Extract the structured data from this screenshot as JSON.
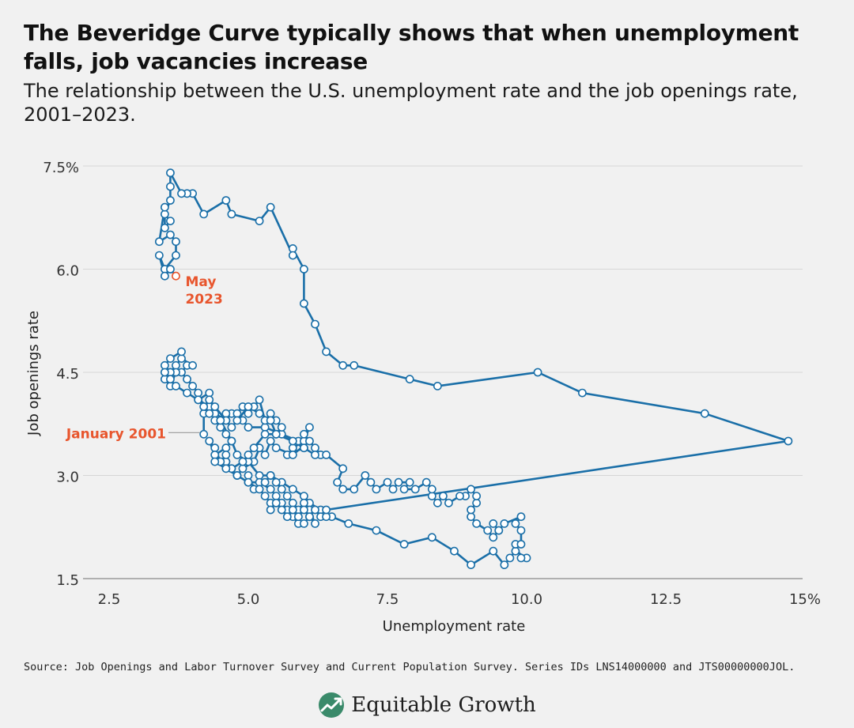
{
  "title": "The Beveridge Curve typically shows that when unemployment falls, job vacancies increase",
  "subtitle": "The relationship between the U.S. unemployment rate and the job openings rate, 2001–2023.",
  "source": "Source: Job Openings and Labor Turnover Survey and Current Population Survey. Series IDs LNS14000000 and JTS00000000JOL.",
  "brand": "Equitable Growth",
  "colors": {
    "line": "#1a6fa8",
    "highlight": "#e8552d",
    "marker_fill": "#ffffff",
    "grid": "#d6d6d6",
    "background": "#f1f1f1"
  },
  "chart_data": {
    "type": "scatter",
    "xlabel": "Unemployment rate",
    "ylabel": "Job openings rate",
    "xlim": [
      2.0,
      15.0
    ],
    "ylim": [
      1.5,
      7.5
    ],
    "x_ticks": [
      {
        "value": 2.5,
        "label": "2.5"
      },
      {
        "value": 5.0,
        "label": "5.0"
      },
      {
        "value": 7.5,
        "label": "7.5"
      },
      {
        "value": 10.0,
        "label": "10.0"
      },
      {
        "value": 12.5,
        "label": "12.5"
      },
      {
        "value": 15.0,
        "label": "15%"
      }
    ],
    "y_ticks": [
      {
        "value": 1.5,
        "label": "1.5"
      },
      {
        "value": 3.0,
        "label": "3.0"
      },
      {
        "value": 4.5,
        "label": "4.5"
      },
      {
        "value": 6.0,
        "label": "6.0"
      },
      {
        "value": 7.5,
        "label": "7.5%"
      }
    ],
    "grid": "horizontal",
    "series": [
      {
        "points": [
          [
            4.2,
            3.6
          ],
          [
            4.2,
            3.9
          ],
          [
            4.3,
            4.0
          ],
          [
            4.1,
            4.1
          ],
          [
            4.3,
            4.2
          ],
          [
            4.4,
            3.9
          ],
          [
            4.6,
            3.8
          ],
          [
            4.7,
            3.9
          ],
          [
            4.9,
            3.8
          ],
          [
            5.0,
            3.7
          ],
          [
            5.3,
            3.7
          ],
          [
            5.6,
            3.6
          ],
          [
            5.9,
            3.5
          ],
          [
            6.0,
            3.4
          ],
          [
            5.7,
            3.3
          ],
          [
            5.8,
            3.4
          ],
          [
            6.0,
            3.5
          ],
          [
            6.1,
            3.7
          ],
          [
            6.0,
            3.6
          ],
          [
            6.2,
            3.4
          ],
          [
            6.3,
            3.3
          ],
          [
            6.1,
            3.5
          ],
          [
            5.8,
            3.3
          ],
          [
            5.5,
            3.4
          ],
          [
            5.4,
            3.5
          ],
          [
            5.3,
            3.3
          ],
          [
            5.2,
            3.4
          ],
          [
            5.1,
            3.2
          ],
          [
            4.9,
            3.1
          ],
          [
            4.8,
            3.0
          ],
          [
            4.7,
            3.1
          ],
          [
            4.6,
            3.2
          ],
          [
            4.5,
            3.2
          ],
          [
            4.4,
            3.3
          ],
          [
            4.6,
            3.4
          ],
          [
            4.7,
            3.5
          ],
          [
            4.6,
            3.6
          ],
          [
            4.5,
            3.7
          ],
          [
            4.4,
            3.8
          ],
          [
            4.6,
            3.9
          ],
          [
            4.8,
            3.9
          ],
          [
            4.9,
            4.0
          ],
          [
            5.0,
            3.9
          ],
          [
            5.1,
            4.0
          ],
          [
            5.2,
            4.1
          ],
          [
            5.3,
            3.8
          ],
          [
            5.4,
            3.9
          ],
          [
            5.5,
            3.8
          ],
          [
            5.6,
            3.7
          ],
          [
            5.5,
            3.6
          ],
          [
            5.4,
            3.8
          ],
          [
            5.2,
            3.9
          ],
          [
            5.0,
            4.0
          ],
          [
            4.8,
            3.8
          ],
          [
            4.7,
            3.7
          ],
          [
            4.6,
            3.8
          ],
          [
            4.4,
            4.0
          ],
          [
            4.3,
            4.1
          ],
          [
            4.2,
            4.0
          ],
          [
            4.1,
            4.2
          ],
          [
            4.0,
            4.3
          ],
          [
            3.9,
            4.4
          ],
          [
            3.8,
            4.5
          ],
          [
            3.9,
            4.6
          ],
          [
            4.0,
            4.6
          ],
          [
            3.8,
            4.7
          ],
          [
            3.7,
            4.6
          ],
          [
            3.6,
            4.5
          ],
          [
            3.5,
            4.4
          ],
          [
            3.6,
            4.3
          ],
          [
            3.7,
            4.5
          ],
          [
            3.8,
            4.8
          ],
          [
            3.6,
            4.7
          ],
          [
            3.5,
            4.6
          ],
          [
            3.6,
            4.5
          ],
          [
            3.5,
            4.5
          ],
          [
            3.6,
            4.4
          ],
          [
            3.7,
            4.3
          ],
          [
            3.9,
            4.2
          ],
          [
            4.1,
            4.1
          ],
          [
            4.3,
            3.9
          ],
          [
            4.5,
            3.8
          ],
          [
            4.7,
            3.5
          ],
          [
            4.8,
            3.3
          ],
          [
            5.0,
            3.2
          ],
          [
            5.2,
            3.0
          ],
          [
            5.4,
            3.0
          ],
          [
            5.6,
            2.9
          ],
          [
            5.8,
            2.8
          ],
          [
            6.0,
            2.7
          ],
          [
            6.1,
            2.6
          ],
          [
            6.3,
            2.5
          ],
          [
            6.5,
            2.4
          ],
          [
            6.8,
            2.3
          ],
          [
            7.3,
            2.2
          ],
          [
            7.8,
            2.0
          ],
          [
            8.3,
            2.1
          ],
          [
            8.7,
            1.9
          ],
          [
            9.0,
            1.7
          ],
          [
            9.4,
            1.9
          ],
          [
            9.6,
            1.7
          ],
          [
            9.7,
            1.8
          ],
          [
            9.8,
            1.9
          ],
          [
            10.0,
            1.8
          ],
          [
            9.9,
            1.8
          ],
          [
            9.8,
            2.0
          ],
          [
            9.9,
            2.0
          ],
          [
            9.9,
            2.2
          ],
          [
            9.8,
            2.3
          ],
          [
            9.9,
            2.4
          ],
          [
            9.6,
            2.3
          ],
          [
            9.5,
            2.2
          ],
          [
            9.4,
            2.3
          ],
          [
            9.5,
            2.2
          ],
          [
            9.4,
            2.1
          ],
          [
            9.3,
            2.2
          ],
          [
            9.1,
            2.3
          ],
          [
            9.0,
            2.4
          ],
          [
            9.0,
            2.5
          ],
          [
            9.1,
            2.6
          ],
          [
            9.1,
            2.7
          ],
          [
            9.0,
            2.8
          ],
          [
            8.9,
            2.7
          ],
          [
            8.8,
            2.7
          ],
          [
            8.6,
            2.6
          ],
          [
            8.5,
            2.7
          ],
          [
            8.4,
            2.6
          ],
          [
            8.3,
            2.7
          ],
          [
            8.3,
            2.8
          ],
          [
            8.2,
            2.9
          ],
          [
            8.0,
            2.8
          ],
          [
            7.8,
            2.8
          ],
          [
            7.9,
            2.9
          ],
          [
            7.7,
            2.9
          ],
          [
            7.6,
            2.8
          ],
          [
            7.5,
            2.9
          ],
          [
            7.3,
            2.8
          ],
          [
            7.2,
            2.9
          ],
          [
            7.1,
            3.0
          ],
          [
            6.9,
            2.8
          ],
          [
            6.7,
            2.8
          ],
          [
            6.6,
            2.9
          ],
          [
            6.7,
            3.1
          ],
          [
            6.4,
            3.3
          ],
          [
            6.2,
            3.3
          ],
          [
            6.0,
            3.4
          ],
          [
            5.8,
            3.5
          ],
          [
            5.5,
            3.6
          ],
          [
            5.3,
            3.6
          ],
          [
            5.1,
            3.4
          ],
          [
            5.0,
            3.3
          ],
          [
            4.9,
            3.2
          ],
          [
            4.7,
            3.1
          ],
          [
            4.6,
            3.2
          ],
          [
            4.6,
            3.3
          ],
          [
            4.5,
            3.2
          ],
          [
            4.4,
            3.4
          ],
          [
            4.3,
            3.5
          ],
          [
            4.4,
            3.3
          ],
          [
            4.4,
            3.2
          ],
          [
            4.6,
            3.1
          ],
          [
            4.8,
            3.0
          ],
          [
            5.0,
            2.9
          ],
          [
            5.2,
            2.9
          ],
          [
            5.4,
            2.8
          ],
          [
            5.5,
            2.7
          ],
          [
            5.6,
            2.6
          ],
          [
            5.7,
            2.5
          ],
          [
            5.8,
            2.4
          ],
          [
            5.9,
            2.3
          ],
          [
            6.0,
            2.3
          ],
          [
            6.1,
            2.4
          ],
          [
            6.2,
            2.3
          ],
          [
            6.1,
            2.5
          ],
          [
            6.0,
            2.6
          ],
          [
            5.9,
            2.5
          ],
          [
            5.8,
            2.6
          ],
          [
            5.7,
            2.7
          ],
          [
            5.6,
            2.8
          ],
          [
            5.5,
            2.9
          ],
          [
            5.4,
            3.0
          ],
          [
            5.3,
            2.9
          ],
          [
            5.1,
            2.8
          ],
          [
            5.0,
            3.0
          ],
          [
            5.0,
            2.9
          ],
          [
            5.2,
            2.8
          ],
          [
            5.3,
            2.7
          ],
          [
            5.4,
            2.6
          ],
          [
            5.4,
            2.5
          ],
          [
            5.5,
            2.6
          ],
          [
            5.6,
            2.5
          ],
          [
            5.7,
            2.4
          ],
          [
            5.8,
            2.5
          ],
          [
            5.9,
            2.4
          ],
          [
            6.0,
            2.5
          ],
          [
            6.1,
            2.4
          ],
          [
            6.2,
            2.5
          ],
          [
            6.3,
            2.4
          ],
          [
            6.4,
            2.4
          ],
          [
            6.4,
            2.5
          ],
          [
            14.7,
            3.5
          ],
          [
            13.2,
            3.9
          ],
          [
            11.0,
            4.2
          ],
          [
            10.2,
            4.5
          ],
          [
            8.4,
            4.3
          ],
          [
            7.9,
            4.4
          ],
          [
            6.9,
            4.6
          ],
          [
            6.7,
            4.6
          ],
          [
            6.4,
            4.8
          ],
          [
            6.2,
            5.2
          ],
          [
            6.0,
            5.5
          ],
          [
            6.0,
            6.0
          ],
          [
            5.8,
            6.3
          ],
          [
            5.8,
            6.2
          ],
          [
            5.4,
            6.9
          ],
          [
            5.2,
            6.7
          ],
          [
            4.7,
            6.8
          ],
          [
            4.6,
            7.0
          ],
          [
            4.2,
            6.8
          ],
          [
            4.0,
            7.1
          ],
          [
            3.9,
            7.1
          ],
          [
            3.8,
            7.1
          ],
          [
            3.6,
            7.4
          ],
          [
            3.6,
            7.2
          ],
          [
            3.6,
            7.0
          ],
          [
            3.5,
            6.8
          ],
          [
            3.6,
            6.7
          ],
          [
            3.5,
            6.6
          ],
          [
            3.5,
            6.9
          ],
          [
            3.4,
            6.4
          ],
          [
            3.6,
            6.5
          ],
          [
            3.7,
            6.4
          ],
          [
            3.7,
            6.2
          ],
          [
            3.5,
            6.0
          ],
          [
            3.4,
            6.2
          ],
          [
            3.5,
            5.9
          ],
          [
            3.6,
            6.0
          ],
          [
            3.7,
            5.9
          ]
        ]
      }
    ],
    "annotations": [
      {
        "label": "January 2001",
        "x": 4.2,
        "y": 3.6
      },
      {
        "label": "May\n2023",
        "x": 3.7,
        "y": 5.9
      }
    ]
  }
}
